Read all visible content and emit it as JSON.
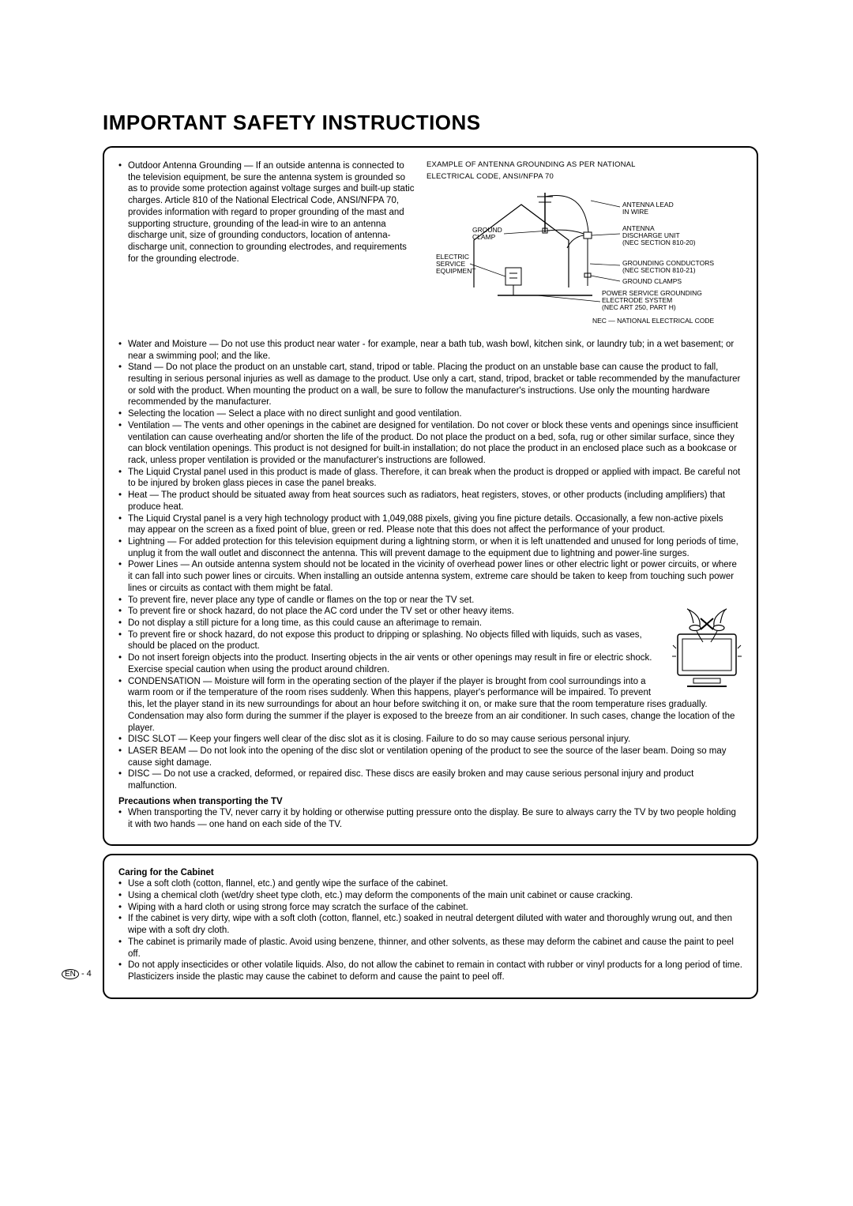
{
  "title": "IMPORTANT SAFETY INSTRUCTIONS",
  "diagram": {
    "title_line1": "EXAMPLE OF ANTENNA GROUNDING AS PER NATIONAL",
    "title_line2": "ELECTRICAL CODE, ANSI/NFPA 70",
    "labels": {
      "antenna_lead": "ANTENNA LEAD",
      "in_wire": "IN WIRE",
      "ground_clamp_left": "GROUND",
      "ground_clamp_left2": "CLAMP",
      "antenna_discharge1": "ANTENNA",
      "antenna_discharge2": "DISCHARGE UNIT",
      "antenna_discharge3": "(NEC SECTION 810-20)",
      "electric1": "ELECTRIC",
      "electric2": "SERVICE",
      "electric3": "EQUIPMENT",
      "grounding_cond1": "GROUNDING CONDUCTORS",
      "grounding_cond2": "(NEC SECTION 810-21)",
      "ground_clamps": "GROUND CLAMPS",
      "power_service1": "POWER SERVICE GROUNDING",
      "power_service2": "ELECTRODE SYSTEM",
      "power_service3": "(NEC ART 250, PART H)",
      "nec_note": "NEC — NATIONAL ELECTRICAL CODE"
    }
  },
  "antenna_bullet": "Outdoor Antenna Grounding — If an outside antenna is connected to the television equipment, be sure the antenna system is grounded so as to provide some protection against voltage surges and built-up static charges. Article 810 of the National Electrical Code, ANSI/NFPA 70, provides information with regard to proper grounding of the mast and supporting structure, grounding of the lead-in wire to an antenna discharge unit, size of grounding conductors, location of antenna-discharge unit, connection to grounding electrodes, and requirements for the grounding electrode.",
  "main_bullets": [
    "Water and Moisture — Do not use this product near water - for example, near a bath tub, wash bowl, kitchen sink, or laundry tub; in a wet basement; or near a swimming pool; and the like.",
    "Stand — Do not place the product on an unstable cart, stand, tripod or table. Placing the product on an unstable base can cause the product to fall, resulting in serious personal injuries as well as damage to the product. Use only a cart, stand, tripod, bracket or table recommended by the manufacturer or sold with the product. When mounting the product on a wall, be sure to follow the manufacturer's instructions. Use only the mounting hardware recommended by the manufacturer.",
    "Selecting the location — Select a place with no direct sunlight and good ventilation.",
    "Ventilation — The vents and other openings in the cabinet are designed for ventilation. Do not cover or block these vents and openings since insufficient ventilation can cause overheating and/or shorten the life of the product. Do not place the product on a bed, sofa, rug or other similar surface, since they can block ventilation openings. This product is not designed for built-in installation; do not place the product in an enclosed place such as a bookcase or rack, unless proper ventilation is provided or the manufacturer's instructions are followed.",
    "The Liquid Crystal panel used in this product is made of glass. Therefore, it can break when the product is dropped or applied with impact. Be careful not to be injured by broken glass pieces in case the panel breaks.",
    "Heat — The product should be situated away from heat sources such as radiators, heat registers, stoves, or other products (including amplifiers) that produce heat.",
    "The Liquid Crystal panel is a very high technology product with 1,049,088 pixels, giving you fine picture details. Occasionally, a few non-active pixels may appear on the screen as a fixed point of blue, green or red. Please note that this does not affect the performance of your product.",
    "Lightning — For added protection for this television equipment during a lightning storm, or when it is left unattended and unused for long periods of time, unplug it from the wall outlet and disconnect the antenna. This will prevent damage to the equipment due to lightning and power-line surges.",
    "Power Lines — An outside antenna system should not be located in the vicinity of overhead power lines or other electric light or power circuits, or where it can fall into such power lines or circuits. When installing an outside antenna system, extreme care should be taken to keep from touching such power lines or circuits as contact with them might be fatal.",
    "To prevent fire, never place any type of candle or flames on the top or near the TV set.",
    "To prevent fire or shock hazard, do not place the AC cord under the TV set or other heavy items.",
    "Do not display a still picture for a long time, as this could cause an afterimage to remain.",
    "To prevent fire or shock hazard, do not expose this product to dripping or splashing. No objects filled with liquids, such as vases, should be placed on the product.",
    "Do not insert foreign objects into the product. Inserting objects in the air vents or other openings may result in fire or electric shock. Exercise special caution when using the product around children.",
    "CONDENSATION — Moisture will form in the operating section of the player if the player is brought from cool surroundings into a warm room or if the temperature of the room rises suddenly. When this happens, player's performance will be impaired. To prevent this, let the player stand in its new surroundings for about an hour before switching it on, or make sure that the room temperature rises gradually. Condensation may also form during the summer if the player is exposed to the breeze from an air conditioner. In such cases, change the location of the player.",
    "DISC SLOT — Keep your fingers well clear of the disc slot as it is closing. Failure to do so may cause serious personal injury.",
    "LASER BEAM — Do not look into the opening of the disc slot or ventilation opening of the product to see the source of the laser beam. Doing so may cause sight damage.",
    "DISC — Do not use a cracked, deformed, or repaired disc. These discs are easily broken and may cause serious personal injury and product malfunction."
  ],
  "transport_head": "Precautions when transporting the TV",
  "transport_bullets": [
    "When transporting the TV, never carry it by holding or otherwise putting pressure onto the display. Be sure to always carry the TV by two people holding it with two hands — one hand on each side of the TV."
  ],
  "caring_head": "Caring for the Cabinet",
  "caring_bullets": [
    "Use a soft cloth (cotton, flannel, etc.) and gently wipe the surface of the cabinet.",
    "Using a chemical cloth (wet/dry sheet type cloth, etc.) may deform the components of the main unit cabinet or cause cracking.",
    "Wiping with a hard cloth or using strong force may scratch the surface of the cabinet.",
    "If the cabinet is very dirty, wipe with a soft cloth (cotton, flannel, etc.) soaked in neutral detergent diluted with water and thoroughly wrung out, and then wipe with a soft dry cloth.",
    "The cabinet is primarily made of plastic. Avoid using benzene, thinner, and other solvents, as these may deform the cabinet and cause the paint to peel off.",
    "Do not apply insecticides or other volatile liquids. Also, do not allow the cabinet to remain in contact with rubber or vinyl products for a long period of time. Plasticizers inside the plastic may cause the cabinet to deform and cause the paint to peel off."
  ],
  "page_label_prefix": "EN",
  "page_label_suffix": " - 4",
  "colors": {
    "text": "#000000",
    "bg": "#ffffff",
    "border": "#000000"
  },
  "fontsize": {
    "title": 26,
    "body": 11.5,
    "diagram_label": 8.5
  }
}
